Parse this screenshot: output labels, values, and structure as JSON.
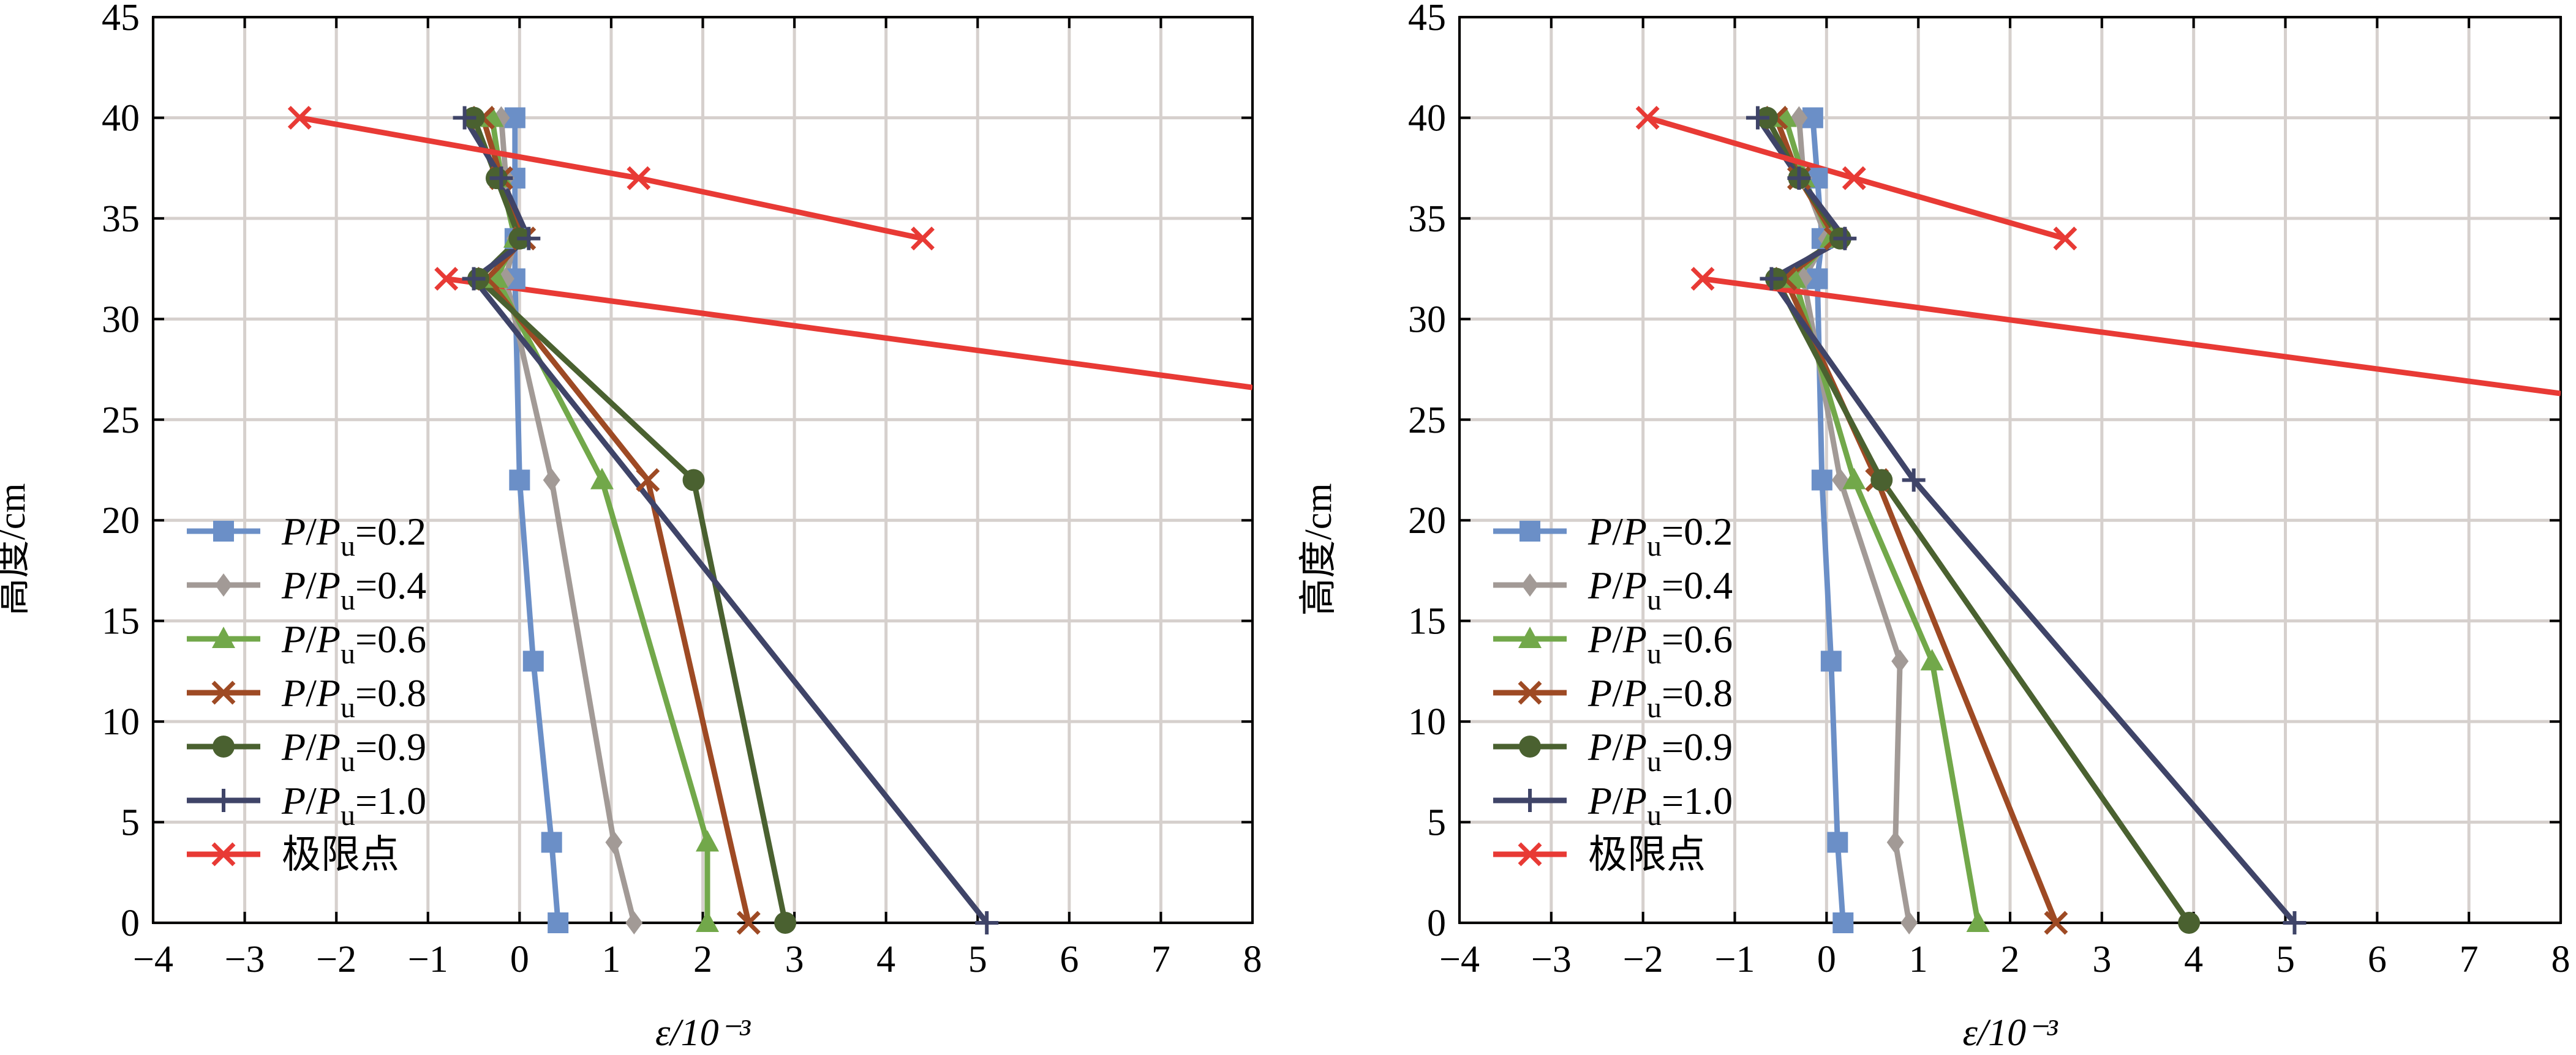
{
  "chart_data": [
    {
      "type": "line",
      "xlabel": "ε/10⁻³",
      "ylabel": "高度/cm",
      "xlim": [
        -4,
        8
      ],
      "ylim": [
        0,
        45
      ],
      "x_ticks": [
        "−4",
        "−3",
        "−2",
        "−1",
        "0",
        "1",
        "2",
        "3",
        "4",
        "5",
        "6",
        "7",
        "8"
      ],
      "y_ticks": [
        "0",
        "5",
        "10",
        "15",
        "20",
        "25",
        "30",
        "35",
        "40",
        "45"
      ],
      "grid": true,
      "legend_position": "lower-left",
      "series": [
        {
          "name": "P/Pu=0.2",
          "color": "#6b8fc7",
          "marker": "square",
          "points": [
            [
              0.42,
              0
            ],
            [
              0.35,
              4
            ],
            [
              0.15,
              13
            ],
            [
              0.0,
              22
            ],
            [
              -0.05,
              32
            ],
            [
              -0.05,
              34
            ],
            [
              -0.05,
              37
            ],
            [
              -0.05,
              40
            ]
          ]
        },
        {
          "name": "P/Pu=0.4",
          "color": "#a29a96",
          "marker": "diamond",
          "points": [
            [
              1.25,
              0
            ],
            [
              1.03,
              4
            ],
            [
              0.35,
              22
            ],
            [
              -0.15,
              32
            ],
            [
              -0.05,
              34
            ],
            [
              -0.15,
              37
            ],
            [
              -0.2,
              40
            ]
          ]
        },
        {
          "name": "P/Pu=0.6",
          "color": "#72a84a",
          "marker": "triangle",
          "points": [
            [
              2.05,
              0
            ],
            [
              2.05,
              4
            ],
            [
              0.9,
              22
            ],
            [
              -0.25,
              32
            ],
            [
              -0.05,
              34
            ],
            [
              -0.2,
              37
            ],
            [
              -0.3,
              40
            ]
          ]
        },
        {
          "name": "P/Pu=0.8",
          "color": "#9e4a24",
          "marker": "x",
          "points": [
            [
              2.5,
              0
            ],
            [
              1.4,
              22
            ],
            [
              -0.35,
              32
            ],
            [
              0.05,
              34
            ],
            [
              -0.2,
              37
            ],
            [
              -0.4,
              40
            ]
          ]
        },
        {
          "name": "P/Pu=0.9",
          "color": "#4a6130",
          "marker": "circle",
          "points": [
            [
              2.9,
              0
            ],
            [
              1.9,
              22
            ],
            [
              -0.45,
              32
            ],
            [
              0.0,
              34
            ],
            [
              -0.25,
              37
            ],
            [
              -0.5,
              40
            ]
          ]
        },
        {
          "name": "P/Pu=1.0",
          "color": "#3f4468",
          "marker": "plus",
          "points": [
            [
              5.1,
              0
            ],
            [
              -0.5,
              32
            ],
            [
              0.1,
              34
            ],
            [
              -0.2,
              37
            ],
            [
              -0.6,
              40
            ]
          ]
        },
        {
          "name": "极限点",
          "color": "#e83a35",
          "marker": "x",
          "points": [
            [
              -2.4,
              40
            ],
            [
              1.3,
              37
            ],
            [
              4.4,
              34
            ]
          ],
          "extra_segment": [
            [
              -0.8,
              32
            ],
            [
              8.0,
              26.6
            ]
          ]
        }
      ]
    },
    {
      "type": "line",
      "xlabel": "ε/10⁻³",
      "ylabel": "高度/cm",
      "xlim": [
        -4,
        8
      ],
      "ylim": [
        0,
        45
      ],
      "x_ticks": [
        "−4",
        "−3",
        "−2",
        "−1",
        "0",
        "1",
        "2",
        "3",
        "4",
        "5",
        "6",
        "7",
        "8"
      ],
      "y_ticks": [
        "0",
        "5",
        "10",
        "15",
        "20",
        "25",
        "30",
        "35",
        "40",
        "45"
      ],
      "grid": true,
      "legend_position": "lower-left",
      "series": [
        {
          "name": "P/Pu=0.2",
          "color": "#6b8fc7",
          "marker": "square",
          "points": [
            [
              0.18,
              0
            ],
            [
              0.12,
              4
            ],
            [
              0.05,
              13
            ],
            [
              -0.05,
              22
            ],
            [
              -0.1,
              32
            ],
            [
              -0.05,
              34
            ],
            [
              -0.1,
              37
            ],
            [
              -0.15,
              40
            ]
          ]
        },
        {
          "name": "P/Pu=0.4",
          "color": "#a29a96",
          "marker": "diamond",
          "points": [
            [
              0.9,
              0
            ],
            [
              0.75,
              4
            ],
            [
              0.8,
              13
            ],
            [
              0.15,
              22
            ],
            [
              -0.25,
              32
            ],
            [
              0.0,
              34
            ],
            [
              -0.25,
              37
            ],
            [
              -0.3,
              40
            ]
          ]
        },
        {
          "name": "P/Pu=0.6",
          "color": "#72a84a",
          "marker": "triangle",
          "points": [
            [
              1.65,
              0
            ],
            [
              1.15,
              13
            ],
            [
              0.3,
              22
            ],
            [
              -0.35,
              32
            ],
            [
              0.05,
              34
            ],
            [
              -0.25,
              37
            ],
            [
              -0.45,
              40
            ]
          ]
        },
        {
          "name": "P/Pu=0.8",
          "color": "#9e4a24",
          "marker": "x",
          "points": [
            [
              2.5,
              0
            ],
            [
              0.55,
              22
            ],
            [
              -0.45,
              32
            ],
            [
              0.1,
              34
            ],
            [
              -0.3,
              37
            ],
            [
              -0.55,
              40
            ]
          ]
        },
        {
          "name": "P/Pu=0.9",
          "color": "#4a6130",
          "marker": "circle",
          "points": [
            [
              3.95,
              0
            ],
            [
              0.6,
              22
            ],
            [
              -0.55,
              32
            ],
            [
              0.15,
              34
            ],
            [
              -0.3,
              37
            ],
            [
              -0.65,
              40
            ]
          ]
        },
        {
          "name": "P/Pu=1.0",
          "color": "#3f4468",
          "marker": "plus",
          "points": [
            [
              5.1,
              0
            ],
            [
              0.95,
              22
            ],
            [
              -0.6,
              32
            ],
            [
              0.2,
              34
            ],
            [
              -0.3,
              37
            ],
            [
              -0.75,
              40
            ]
          ]
        },
        {
          "name": "极限点",
          "color": "#e83a35",
          "marker": "x",
          "points": [
            [
              -1.95,
              40
            ],
            [
              0.3,
              37
            ],
            [
              2.6,
              34
            ]
          ],
          "extra_segment": [
            [
              -1.35,
              32
            ],
            [
              8.0,
              26.3
            ]
          ]
        }
      ]
    }
  ]
}
